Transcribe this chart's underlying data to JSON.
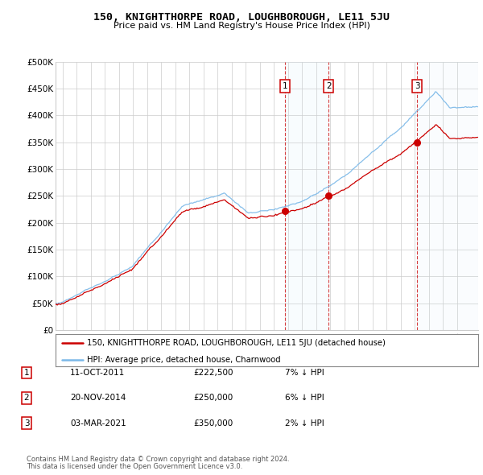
{
  "title": "150, KNIGHTTHORPE ROAD, LOUGHBOROUGH, LE11 5JU",
  "subtitle": "Price paid vs. HM Land Registry's House Price Index (HPI)",
  "legend_line1": "150, KNIGHTTHORPE ROAD, LOUGHBOROUGH, LE11 5JU (detached house)",
  "legend_line2": "HPI: Average price, detached house, Charnwood",
  "footer1": "Contains HM Land Registry data © Crown copyright and database right 2024.",
  "footer2": "This data is licensed under the Open Government Licence v3.0.",
  "transactions": [
    {
      "num": 1,
      "date": "11-OCT-2011",
      "price": "£222,500",
      "note": "7% ↓ HPI",
      "year": 2011.78,
      "price_val": 222500
    },
    {
      "num": 2,
      "date": "20-NOV-2014",
      "price": "£250,000",
      "note": "6% ↓ HPI",
      "year": 2014.88,
      "price_val": 250000
    },
    {
      "num": 3,
      "date": "03-MAR-2021",
      "price": "£350,000",
      "note": "2% ↓ HPI",
      "year": 2021.17,
      "price_val": 350000
    }
  ],
  "hpi_color": "#7ab8e8",
  "price_color": "#cc0000",
  "vline_color": "#cc0000",
  "background_color": "#ffffff",
  "grid_color": "#cccccc",
  "shade_color": "#d0e8f8",
  "ylim": [
    0,
    500000
  ],
  "ytick_step": 50000,
  "xmin": 1995.5,
  "xmax": 2025.5
}
